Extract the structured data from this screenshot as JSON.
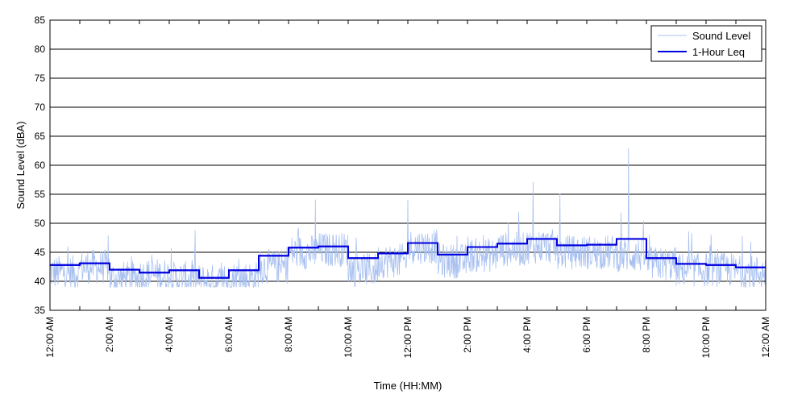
{
  "chart_data": {
    "type": "line",
    "xlabel": "Time (HH:MM)",
    "ylabel": "Sound Level (dBA)",
    "ylim": [
      35,
      85
    ],
    "xlim": [
      0,
      24
    ],
    "y_ticks": [
      35,
      40,
      45,
      50,
      55,
      60,
      65,
      70,
      75,
      80,
      85
    ],
    "x_ticks": [
      0,
      1,
      2,
      3,
      4,
      5,
      6,
      7,
      8,
      9,
      10,
      11,
      12,
      13,
      14,
      15,
      16,
      17,
      18,
      19,
      20,
      21,
      22,
      23,
      24
    ],
    "x_tick_labels": [
      {
        "x": 0,
        "label": "12:00 AM"
      },
      {
        "x": 2,
        "label": "2:00 AM"
      },
      {
        "x": 4,
        "label": "4:00 AM"
      },
      {
        "x": 6,
        "label": "6:00 AM"
      },
      {
        "x": 8,
        "label": "8:00 AM"
      },
      {
        "x": 10,
        "label": "10:00 AM"
      },
      {
        "x": 12,
        "label": "12:00 PM"
      },
      {
        "x": 14,
        "label": "2:00 PM"
      },
      {
        "x": 16,
        "label": "4:00 PM"
      },
      {
        "x": 18,
        "label": "6:00 PM"
      },
      {
        "x": 20,
        "label": "8:00 PM"
      },
      {
        "x": 22,
        "label": "10:00 PM"
      },
      {
        "x": 24,
        "label": "12:00 AM"
      }
    ],
    "grid": "horizontal",
    "legend_position": "top-right",
    "series": [
      {
        "name": "Sound Level",
        "color": "#a8c0f0",
        "style": "thin-noisy",
        "hourly_mean": [
          41.5,
          42.5,
          40.5,
          41.0,
          40.5,
          40.0,
          40.5,
          42.5,
          45.0,
          45.5,
          42.0,
          43.5,
          46.0,
          43.5,
          44.5,
          45.5,
          46.0,
          45.0,
          45.0,
          44.5,
          43.0,
          42.0,
          42.0,
          41.5
        ],
        "peaks": [
          {
            "x": 8.9,
            "y": 54.0
          },
          {
            "x": 12.0,
            "y": 54.0
          },
          {
            "x": 16.2,
            "y": 57.0
          },
          {
            "x": 17.1,
            "y": 55.0
          },
          {
            "x": 19.4,
            "y": 62.8
          }
        ]
      },
      {
        "name": "1-Hour Leq",
        "color": "#0000e0",
        "style": "step",
        "values": [
          42.8,
          43.1,
          42.0,
          41.5,
          41.9,
          40.6,
          41.9,
          44.4,
          45.8,
          46.0,
          44.0,
          44.8,
          46.6,
          44.6,
          45.9,
          46.5,
          47.3,
          46.2,
          46.3,
          47.3,
          44.0,
          43.0,
          42.8,
          42.4
        ]
      }
    ]
  },
  "colors": {
    "background": "#ffffff",
    "axis": "#000000",
    "grid": "#000000"
  }
}
